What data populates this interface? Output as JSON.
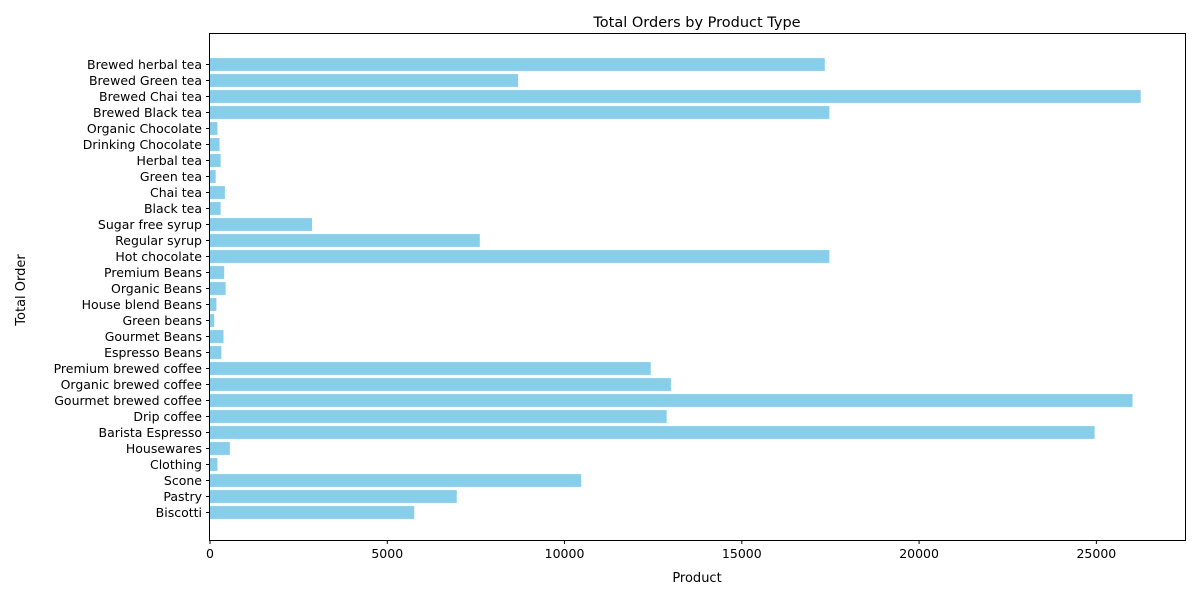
{
  "chart_data": {
    "type": "bar",
    "orientation": "horizontal",
    "title": "Total Orders by Product Type",
    "xlabel": "Product",
    "ylabel": "Total Order",
    "xlim": [
      0,
      27500
    ],
    "xticks": [
      0,
      5000,
      10000,
      15000,
      20000,
      25000
    ],
    "grid": false,
    "bar_color": "#87ceeb",
    "categories": [
      "Biscotti",
      "Pastry",
      "Scone",
      "Clothing",
      "Housewares",
      "Barista Espresso",
      "Drip coffee",
      "Gourmet brewed coffee",
      "Organic brewed coffee",
      "Premium brewed coffee",
      "Espresso Beans",
      "Gourmet Beans",
      "Green beans",
      "House blend Beans",
      "Organic Beans",
      "Premium Beans",
      "Hot chocolate",
      "Regular syrup",
      "Sugar free syrup",
      "Black tea",
      "Chai tea",
      "Green tea",
      "Herbal tea",
      "Drinking Chocolate",
      "Organic Chocolate",
      "Brewed Black tea",
      "Brewed Chai tea",
      "Brewed Green tea",
      "Brewed herbal tea"
    ],
    "values": [
      5760,
      6960,
      10470,
      210,
      560,
      24950,
      12880,
      26020,
      13000,
      12430,
      320,
      380,
      120,
      180,
      440,
      400,
      17470,
      7610,
      2880,
      300,
      420,
      160,
      300,
      270,
      210,
      17470,
      26250,
      8690,
      17340
    ]
  }
}
